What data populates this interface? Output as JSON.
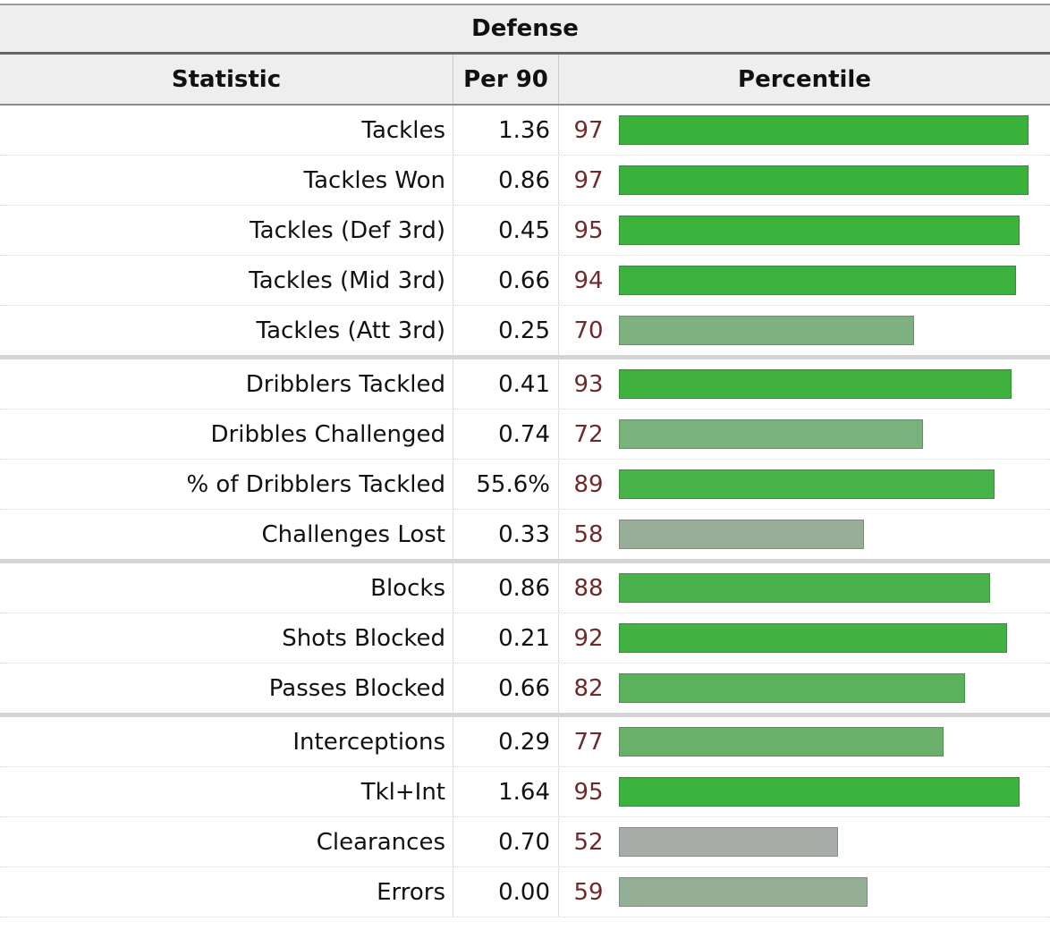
{
  "title": "Defense",
  "headers": {
    "statistic": "Statistic",
    "per90": "Per 90",
    "percentile": "Percentile"
  },
  "chart_data": {
    "type": "bar",
    "title": "Defense",
    "value_label": "Percentile",
    "xlim": [
      0,
      100
    ],
    "rows": [
      {
        "statistic": "Tackles",
        "per90": "1.36",
        "percentile": 97,
        "group": 1,
        "color": "#39b13b"
      },
      {
        "statistic": "Tackles Won",
        "per90": "0.86",
        "percentile": 97,
        "group": 1,
        "color": "#39b13b"
      },
      {
        "statistic": "Tackles (Def 3rd)",
        "per90": "0.45",
        "percentile": 95,
        "group": 1,
        "color": "#3ab23b"
      },
      {
        "statistic": "Tackles (Mid 3rd)",
        "per90": "0.66",
        "percentile": 94,
        "group": 1,
        "color": "#3cb13d"
      },
      {
        "statistic": "Tackles (Att 3rd)",
        "per90": "0.25",
        "percentile": 70,
        "group": 1,
        "color": "#7fb080"
      },
      {
        "statistic": "Dribblers Tackled",
        "per90": "0.41",
        "percentile": 93,
        "group": 2,
        "color": "#3eb13f"
      },
      {
        "statistic": "Dribbles Challenged",
        "per90": "0.74",
        "percentile": 72,
        "group": 2,
        "color": "#79b27a"
      },
      {
        "statistic": "% of Dribblers Tackled",
        "per90": "55.6%",
        "percentile": 89,
        "group": 2,
        "color": "#48b349"
      },
      {
        "statistic": "Challenges Lost",
        "per90": "0.33",
        "percentile": 58,
        "group": 2,
        "color": "#98ae99"
      },
      {
        "statistic": "Blocks",
        "per90": "0.86",
        "percentile": 88,
        "group": 3,
        "color": "#4ab24b"
      },
      {
        "statistic": "Shots Blocked",
        "per90": "0.21",
        "percentile": 92,
        "group": 3,
        "color": "#41b142"
      },
      {
        "statistic": "Passes Blocked",
        "per90": "0.66",
        "percentile": 82,
        "group": 3,
        "color": "#5bb15c"
      },
      {
        "statistic": "Interceptions",
        "per90": "0.29",
        "percentile": 77,
        "group": 4,
        "color": "#6ab06b"
      },
      {
        "statistic": "Tkl+Int",
        "per90": "1.64",
        "percentile": 95,
        "group": 4,
        "color": "#3ab23b"
      },
      {
        "statistic": "Clearances",
        "per90": "0.70",
        "percentile": 52,
        "group": 4,
        "color": "#a8aca9"
      },
      {
        "statistic": "Errors",
        "per90": "0.00",
        "percentile": 59,
        "group": 4,
        "color": "#95ae96"
      }
    ]
  }
}
